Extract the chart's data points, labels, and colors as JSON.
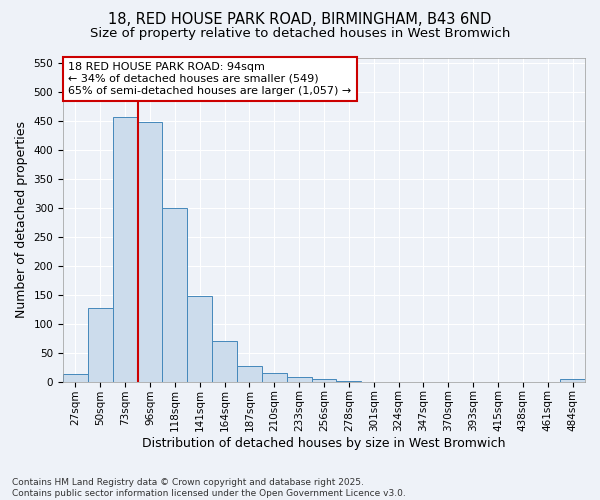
{
  "title_line1": "18, RED HOUSE PARK ROAD, BIRMINGHAM, B43 6ND",
  "title_line2": "Size of property relative to detached houses in West Bromwich",
  "xlabel": "Distribution of detached houses by size in West Bromwich",
  "ylabel": "Number of detached properties",
  "categories": [
    "27sqm",
    "50sqm",
    "73sqm",
    "96sqm",
    "118sqm",
    "141sqm",
    "164sqm",
    "187sqm",
    "210sqm",
    "233sqm",
    "256sqm",
    "278sqm",
    "301sqm",
    "324sqm",
    "347sqm",
    "370sqm",
    "393sqm",
    "415sqm",
    "438sqm",
    "461sqm",
    "484sqm"
  ],
  "values": [
    13,
    128,
    457,
    449,
    300,
    148,
    70,
    27,
    15,
    8,
    4,
    1,
    0,
    0,
    0,
    0,
    0,
    0,
    0,
    0,
    5
  ],
  "bar_color": "#ccdcec",
  "bar_edge_color": "#4488bb",
  "vline_color": "#cc0000",
  "vline_x": 2.5,
  "annotation_text": "18 RED HOUSE PARK ROAD: 94sqm\n← 34% of detached houses are smaller (549)\n65% of semi-detached houses are larger (1,057) →",
  "annotation_box_color": "#cc0000",
  "ylim": [
    0,
    560
  ],
  "yticks": [
    0,
    50,
    100,
    150,
    200,
    250,
    300,
    350,
    400,
    450,
    500,
    550
  ],
  "background_color": "#eef2f8",
  "grid_color": "#ffffff",
  "footer_line1": "Contains HM Land Registry data © Crown copyright and database right 2025.",
  "footer_line2": "Contains public sector information licensed under the Open Government Licence v3.0.",
  "title_fontsize": 10.5,
  "subtitle_fontsize": 9.5,
  "axis_label_fontsize": 9,
  "tick_fontsize": 7.5,
  "footer_fontsize": 6.5
}
